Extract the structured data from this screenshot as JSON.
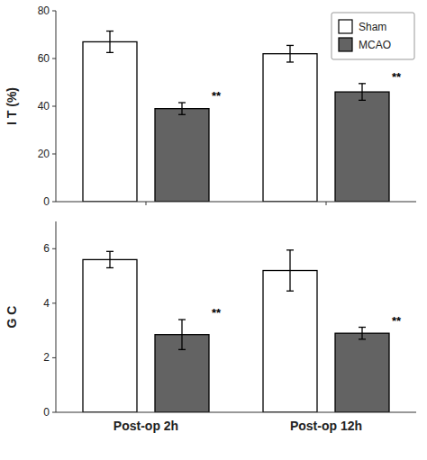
{
  "chart_data": [
    {
      "type": "bar",
      "ylabel": "I T (%)",
      "categories": [
        null,
        null
      ],
      "series": [
        {
          "name": "Sham",
          "color": "#FFFFFF",
          "values": [
            67,
            62
          ],
          "errors": [
            4.5,
            3.5
          ]
        },
        {
          "name": "MCAO",
          "color": "#636363",
          "values": [
            39,
            46
          ],
          "errors": [
            2.5,
            3.5
          ]
        }
      ],
      "annotations": [
        {
          "text": "**",
          "series": 1,
          "index": 0
        },
        {
          "text": "**",
          "series": 1,
          "index": 1
        }
      ],
      "ylim": [
        0,
        80
      ],
      "yticks": [
        0,
        20,
        40,
        60,
        80
      ],
      "grid": false,
      "legend": "upper right"
    },
    {
      "type": "bar",
      "ylabel": "G C",
      "categories": [
        "Post-op 2h",
        "Post-op 12h"
      ],
      "series": [
        {
          "name": "Sham",
          "color": "#FFFFFF",
          "values": [
            5.6,
            5.2
          ],
          "errors": [
            0.3,
            0.75
          ]
        },
        {
          "name": "MCAO",
          "color": "#636363",
          "values": [
            2.85,
            2.9
          ],
          "errors": [
            0.55,
            0.22
          ]
        }
      ],
      "annotations": [
        {
          "text": "**",
          "series": 1,
          "index": 0
        },
        {
          "text": "**",
          "series": 1,
          "index": 1
        }
      ],
      "ylim": [
        0,
        7
      ],
      "yticks": [
        0,
        2,
        4,
        6
      ],
      "grid": false,
      "legend": false
    }
  ]
}
